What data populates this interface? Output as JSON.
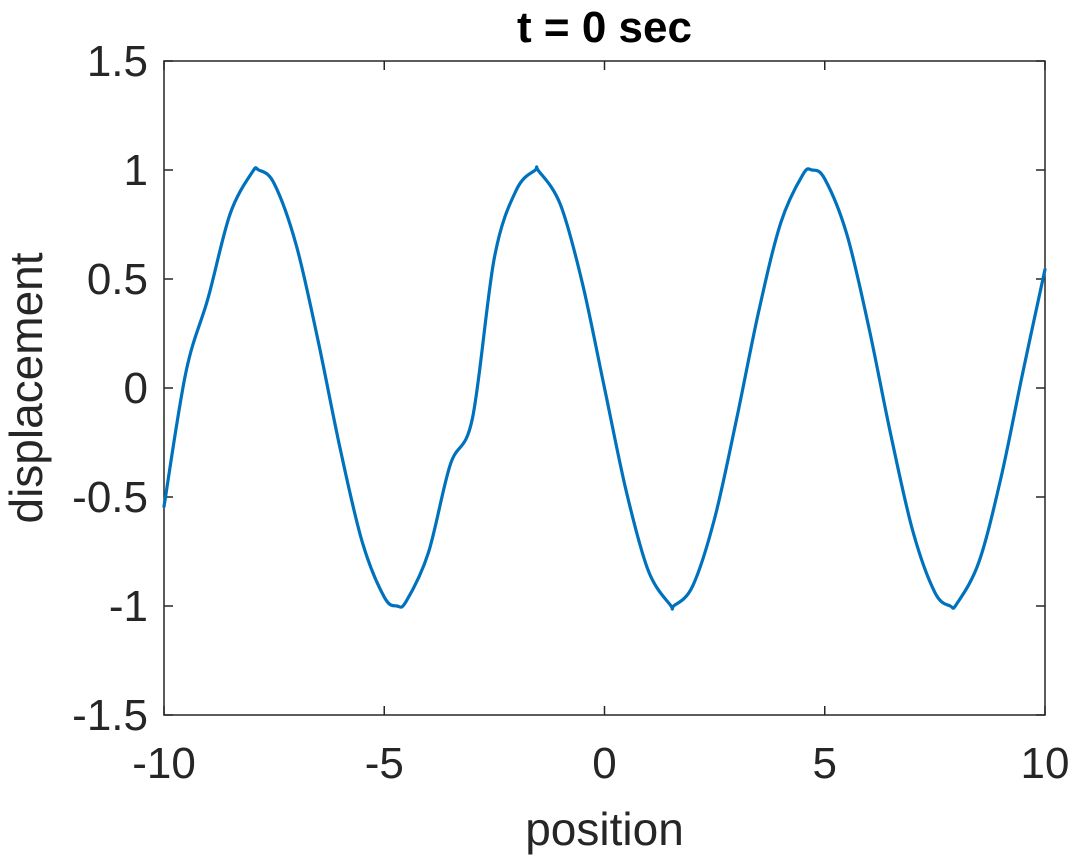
{
  "chart_data": {
    "type": "line",
    "title": "t = 0 sec",
    "xlabel": "position",
    "ylabel": "displacement",
    "xlim": [
      -10,
      10
    ],
    "ylim": [
      -1.5,
      1.5
    ],
    "xticks": [
      -10,
      -5,
      0,
      5,
      10
    ],
    "xtick_labels": [
      "-10",
      "-5",
      "0",
      "5",
      "10"
    ],
    "yticks": [
      -1.5,
      -1,
      -0.5,
      0,
      0.5,
      1,
      1.5
    ],
    "ytick_labels": [
      "-1.5",
      "-1",
      "-0.5",
      "0",
      "0.5",
      "1",
      "1.5"
    ],
    "grid": false,
    "box": true,
    "series": [
      {
        "color": "#0072BD",
        "x": [
          -10,
          -9.5,
          -9,
          -8.5,
          -8,
          -7.85,
          -7.5,
          -7,
          -6.5,
          -6,
          -5.5,
          -5,
          -4.71,
          -4.5,
          -4,
          -3.5,
          -3,
          -2.5,
          -2,
          -1.57,
          -1.5,
          -1,
          -0.5,
          0,
          0.5,
          1,
          1.5,
          1.57,
          2,
          2.5,
          3,
          3.5,
          4,
          4.5,
          4.71,
          5,
          5.5,
          6,
          6.5,
          7,
          7.5,
          7.85,
          8,
          8.5,
          9,
          9.5,
          10
        ],
        "y": [
          -0.544,
          0.075,
          0.412,
          0.798,
          0.989,
          1.0,
          0.938,
          0.657,
          0.215,
          -0.279,
          -0.706,
          -0.959,
          -1.0,
          -0.978,
          -0.757,
          -0.351,
          -0.141,
          0.598,
          0.909,
          1.0,
          0.997,
          0.841,
          0.479,
          0.0,
          -0.479,
          -0.841,
          -0.997,
          -1.0,
          -0.909,
          -0.598,
          -0.141,
          0.351,
          0.757,
          0.978,
          1.0,
          0.959,
          0.706,
          0.279,
          -0.215,
          -0.657,
          -0.938,
          -1.0,
          -0.989,
          -0.798,
          -0.412,
          0.075,
          0.544
        ]
      }
    ]
  }
}
